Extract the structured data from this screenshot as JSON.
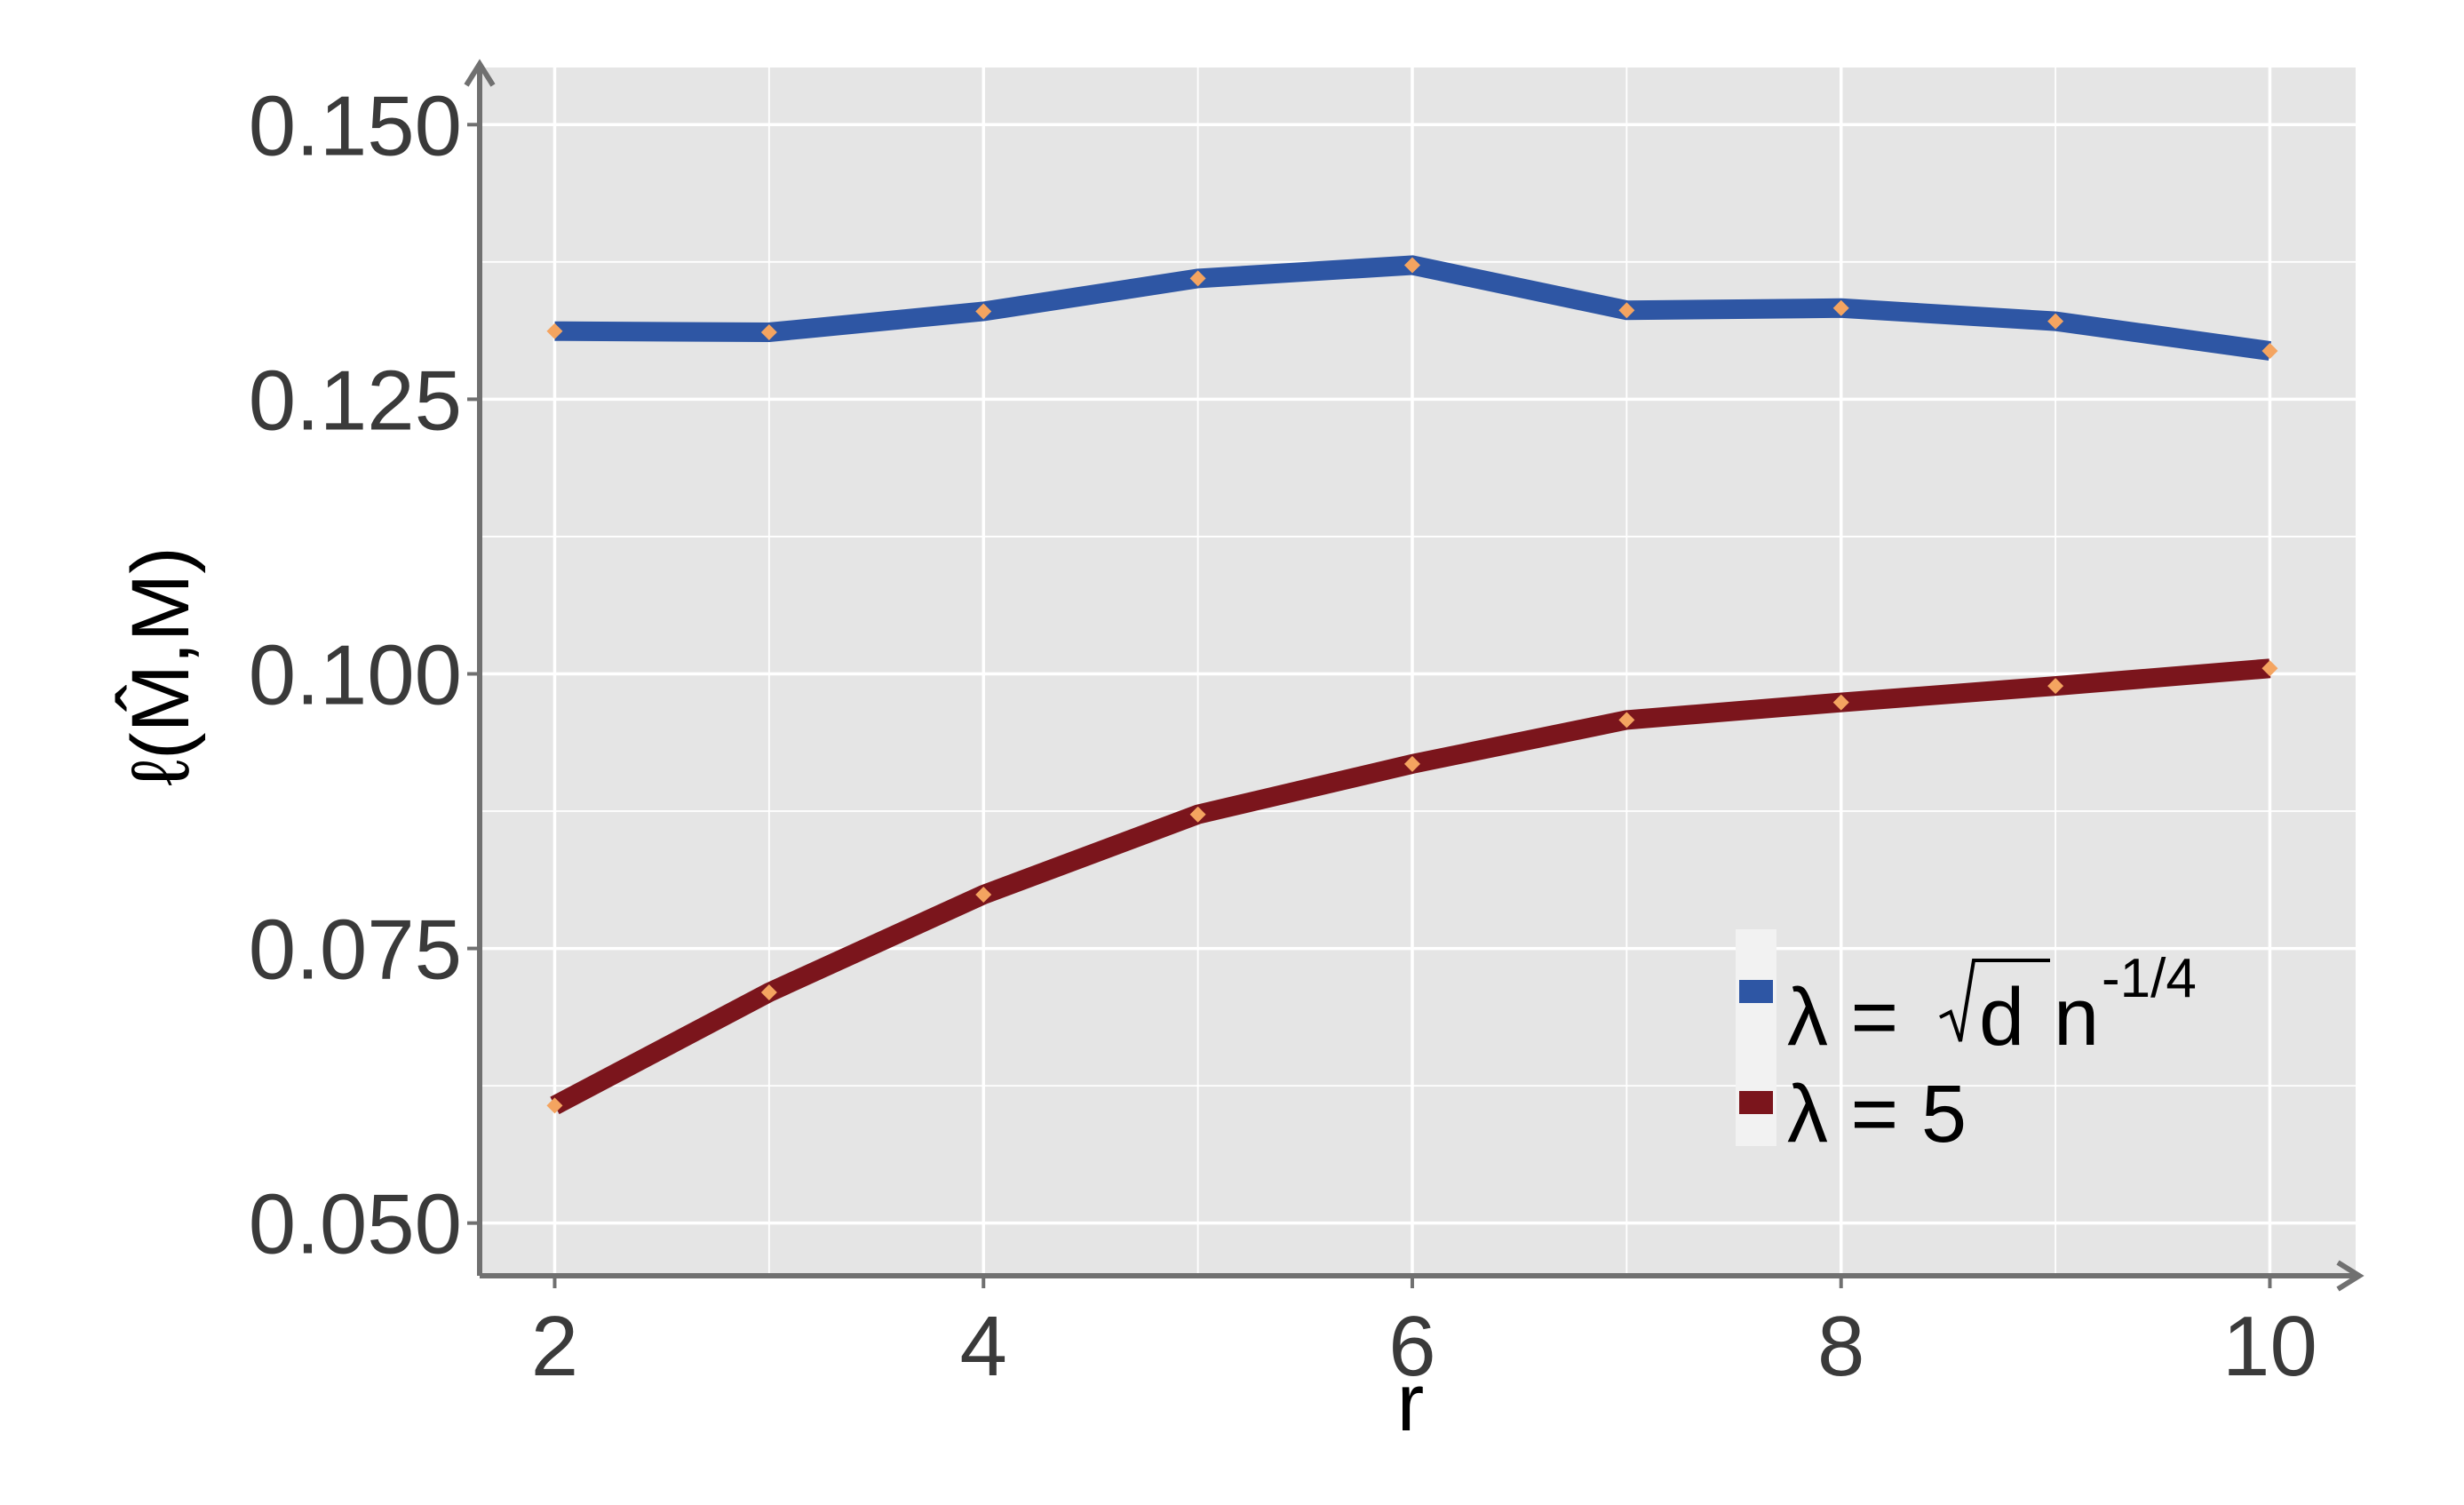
{
  "chart_data": {
    "type": "line",
    "x": [
      2,
      3,
      4,
      5,
      6,
      7,
      8,
      9,
      10
    ],
    "xlabel": "r",
    "ylabel": "ℓ(M̂,M)",
    "xlim": [
      1.65,
      10.4
    ],
    "ylim": [
      0.0452,
      0.1552
    ],
    "x_ticks": [
      2,
      4,
      6,
      8,
      10
    ],
    "x_tick_labels": [
      "2",
      "4",
      "6",
      "8",
      "10"
    ],
    "y_ticks": [
      0.05,
      0.075,
      0.1,
      0.125,
      0.15
    ],
    "y_tick_labels": [
      "0.050",
      "0.075",
      "0.100",
      "0.125",
      "0.150"
    ],
    "grid": true,
    "legend_position": "bottom-right",
    "series": [
      {
        "name": "λ = √d n^-1/4",
        "legend": {
          "prefix": "λ = ",
          "radicand": "d",
          "base": "n",
          "exponent": "-1/4"
        },
        "color": "#2e56a4",
        "values": [
          0.1312,
          0.1311,
          0.133,
          0.136,
          0.1372,
          0.1331,
          0.1333,
          0.1321,
          0.1294
        ]
      },
      {
        "name": "λ = 5",
        "legend": {
          "text": "λ = 5"
        },
        "color": "#7b151c",
        "values": [
          0.0607,
          0.071,
          0.0799,
          0.0872,
          0.0918,
          0.0958,
          0.0974,
          0.0989,
          0.1005
        ]
      }
    ],
    "point_marker": {
      "shape": "diamond",
      "color": "#f4a460"
    },
    "panel_color": "#e5e5e5",
    "grid_color": "#ffffff",
    "axis_color": "#707070"
  }
}
